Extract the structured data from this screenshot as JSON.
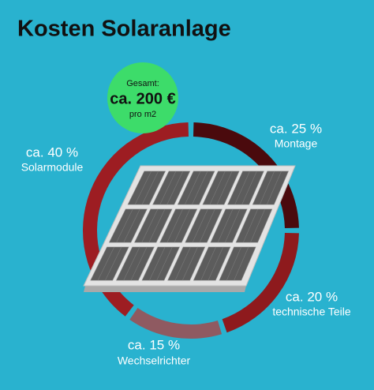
{
  "chart_data": {
    "type": "donut",
    "title": "Kosten Solaranlage",
    "total_label": "Gesamt:",
    "total_value": "ca. 200 €",
    "total_unit": "pro m2",
    "categories": [
      "Montage",
      "technische Teile",
      "Wechselrichter",
      "Solarmodule"
    ],
    "values": [
      25,
      20,
      15,
      40
    ],
    "value_labels": [
      "ca. 25 %",
      "ca. 20 %",
      "ca. 15 %",
      "ca. 40 %"
    ],
    "colors": [
      "#4a0a0d",
      "#8e1a1d",
      "#8f5a61",
      "#9d1d22"
    ]
  }
}
